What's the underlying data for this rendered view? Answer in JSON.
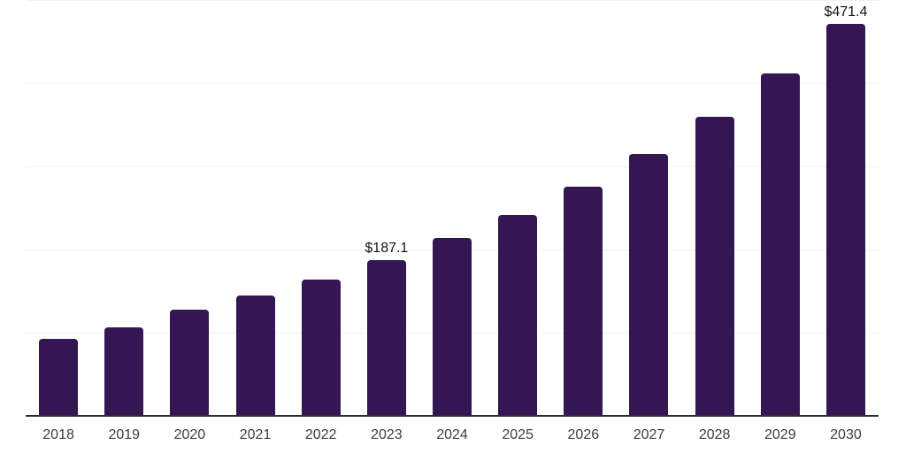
{
  "chart_data": {
    "type": "bar",
    "title": "",
    "xlabel": "",
    "ylabel": "",
    "categories": [
      "2018",
      "2019",
      "2020",
      "2021",
      "2022",
      "2023",
      "2024",
      "2025",
      "2026",
      "2027",
      "2028",
      "2029",
      "2030"
    ],
    "values": [
      92.3,
      106.5,
      127.5,
      144.4,
      163.8,
      187.1,
      213.5,
      241.5,
      276.0,
      315.0,
      360.0,
      411.5,
      471.4
    ],
    "value_labels": [
      {
        "category": "2023",
        "text": "$187.1"
      },
      {
        "category": "2030",
        "text": "$471.4"
      }
    ],
    "ylim": [
      0,
      500
    ],
    "grid": "horizontal",
    "grid_interval": 100,
    "legend": "none",
    "colors": {
      "bar": "#341653",
      "gridline": "#f1f1f1",
      "axis_line": "#2d2d2d",
      "tick_label": "#3d3d3d",
      "value_label": "#151515",
      "background": "#ffffff"
    }
  }
}
